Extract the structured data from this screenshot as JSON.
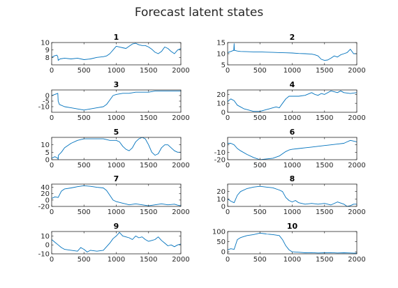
{
  "figure": {
    "title": "Forecast latent states"
  },
  "colors": {
    "line": "#0072bd",
    "axis": "#262626"
  },
  "chart_data": [
    {
      "type": "line",
      "title": "1",
      "xlim": [
        0,
        2000
      ],
      "ylim": [
        7,
        10
      ],
      "yticks": [
        8,
        9,
        10
      ],
      "xticks": [
        0,
        500,
        1000,
        1500,
        2000
      ],
      "x": [
        0,
        40,
        80,
        95,
        100,
        130,
        200,
        300,
        400,
        500,
        600,
        700,
        800,
        850,
        900,
        950,
        1000,
        1050,
        1100,
        1150,
        1200,
        1250,
        1300,
        1350,
        1400,
        1450,
        1500,
        1550,
        1600,
        1650,
        1700,
        1750,
        1800,
        1850,
        1900,
        1950,
        2000
      ],
      "y": [
        8.0,
        8.2,
        8.3,
        8.1,
        7.6,
        7.8,
        7.9,
        7.8,
        7.9,
        7.7,
        7.8,
        8.0,
        8.1,
        8.2,
        8.5,
        9.0,
        9.5,
        9.4,
        9.3,
        9.2,
        9.5,
        9.8,
        9.9,
        9.7,
        9.6,
        9.6,
        9.4,
        9.1,
        8.7,
        8.5,
        8.8,
        9.4,
        9.2,
        8.8,
        8.5,
        9.0,
        9.2
      ]
    },
    {
      "type": "line",
      "title": "2",
      "xlim": [
        0,
        2000
      ],
      "ylim": [
        5,
        15
      ],
      "yticks": [
        5,
        10,
        15
      ],
      "xticks": [
        0,
        500,
        1000,
        1500,
        2000
      ],
      "x": [
        0,
        50,
        95,
        100,
        105,
        150,
        200,
        300,
        400,
        500,
        600,
        700,
        800,
        900,
        1000,
        1100,
        1200,
        1300,
        1350,
        1400,
        1450,
        1500,
        1550,
        1600,
        1650,
        1700,
        1750,
        1800,
        1850,
        1900,
        1950,
        2000
      ],
      "y": [
        10.5,
        11.0,
        11.5,
        14.5,
        11.5,
        11.2,
        11.0,
        10.9,
        10.8,
        10.8,
        10.7,
        10.6,
        10.5,
        10.4,
        10.3,
        10.1,
        10.0,
        9.8,
        9.5,
        9.0,
        7.5,
        7.0,
        7.2,
        8.0,
        9.0,
        8.5,
        9.5,
        10.0,
        10.5,
        12.0,
        10.0,
        10.0
      ]
    },
    {
      "type": "line",
      "title": "3",
      "xlim": [
        0,
        2000
      ],
      "ylim": [
        -15,
        5
      ],
      "yticks": [
        -10,
        -5,
        0
      ],
      "xticks": [
        0,
        500,
        1000,
        1500,
        2000
      ],
      "x": [
        0,
        50,
        95,
        100,
        120,
        200,
        300,
        400,
        500,
        600,
        700,
        800,
        850,
        900,
        950,
        1000,
        1100,
        1200,
        1300,
        1400,
        1500,
        1600,
        1700,
        1800,
        1900,
        2000
      ],
      "y": [
        0,
        1,
        2,
        -5,
        -8,
        -10,
        -11,
        -12,
        -13,
        -12,
        -11,
        -10,
        -8,
        -4,
        0,
        1,
        2,
        2,
        3,
        3,
        3,
        4,
        4,
        4,
        4,
        4
      ]
    },
    {
      "type": "line",
      "title": "4",
      "xlim": [
        0,
        2000
      ],
      "ylim": [
        0,
        25
      ],
      "yticks": [
        0,
        10,
        20
      ],
      "xticks": [
        0,
        500,
        1000,
        1500,
        2000
      ],
      "x": [
        0,
        50,
        100,
        150,
        200,
        250,
        300,
        350,
        400,
        450,
        500,
        550,
        600,
        650,
        700,
        750,
        800,
        850,
        900,
        950,
        1000,
        1100,
        1200,
        1300,
        1350,
        1400,
        1450,
        1500,
        1600,
        1700,
        1750,
        1800,
        1900,
        2000
      ],
      "y": [
        12,
        15,
        13,
        8,
        6,
        4,
        3,
        2,
        1,
        1,
        1,
        2,
        3,
        4,
        5,
        6,
        5,
        10,
        15,
        18,
        18,
        18,
        19,
        22,
        20,
        19,
        21,
        20,
        24,
        22,
        24,
        22,
        21,
        22
      ]
    },
    {
      "type": "line",
      "title": "5",
      "xlim": [
        0,
        2000
      ],
      "ylim": [
        0,
        15
      ],
      "yticks": [
        0,
        5,
        10
      ],
      "xticks": [
        0,
        500,
        1000,
        1500,
        2000
      ],
      "x": [
        0,
        50,
        95,
        100,
        105,
        150,
        200,
        300,
        400,
        500,
        600,
        700,
        800,
        900,
        1000,
        1050,
        1100,
        1150,
        1200,
        1250,
        1300,
        1350,
        1400,
        1450,
        1500,
        1550,
        1600,
        1650,
        1700,
        1750,
        1800,
        1850,
        1900,
        1950,
        2000
      ],
      "y": [
        1,
        2,
        1,
        0,
        3,
        5,
        8,
        11,
        13,
        14,
        14,
        14,
        14,
        13,
        13,
        12,
        9,
        7,
        6,
        8,
        12,
        14,
        15,
        14,
        10,
        5,
        3,
        4,
        8,
        10,
        10,
        8,
        6,
        5,
        5
      ]
    },
    {
      "type": "line",
      "title": "6",
      "xlim": [
        0,
        2000
      ],
      "ylim": [
        -20,
        10
      ],
      "yticks": [
        -20,
        -10,
        0
      ],
      "xticks": [
        0,
        500,
        1000,
        1500,
        2000
      ],
      "x": [
        0,
        50,
        100,
        150,
        200,
        300,
        400,
        500,
        600,
        700,
        800,
        850,
        900,
        950,
        1000,
        1100,
        1200,
        1300,
        1400,
        1500,
        1600,
        1700,
        1800,
        1850,
        1900,
        1950,
        2000
      ],
      "y": [
        2,
        2,
        0,
        -5,
        -8,
        -13,
        -17,
        -20,
        -19,
        -18,
        -15,
        -12,
        -9,
        -7,
        -6,
        -5,
        -4,
        -3,
        -2,
        -1,
        0,
        1,
        2,
        4,
        6,
        5,
        4
      ]
    },
    {
      "type": "line",
      "title": "7",
      "xlim": [
        0,
        2000
      ],
      "ylim": [
        -20,
        50
      ],
      "yticks": [
        -20,
        0,
        20,
        40
      ],
      "xticks": [
        0,
        500,
        1000,
        1500,
        2000
      ],
      "x": [
        0,
        50,
        100,
        150,
        200,
        300,
        400,
        500,
        600,
        700,
        800,
        850,
        900,
        950,
        1000,
        1100,
        1200,
        1300,
        1400,
        1500,
        1600,
        1700,
        1800,
        1900,
        1950,
        2000
      ],
      "y": [
        5,
        10,
        8,
        28,
        35,
        38,
        42,
        45,
        43,
        40,
        38,
        30,
        15,
        0,
        -5,
        -10,
        -15,
        -12,
        -15,
        -18,
        -15,
        -12,
        -15,
        -13,
        -16,
        -18
      ]
    },
    {
      "type": "line",
      "title": "8",
      "xlim": [
        0,
        2000
      ],
      "ylim": [
        0,
        30
      ],
      "yticks": [
        0,
        10,
        20
      ],
      "xticks": [
        0,
        500,
        1000,
        1500,
        2000
      ],
      "x": [
        0,
        50,
        100,
        150,
        200,
        300,
        400,
        500,
        600,
        700,
        800,
        850,
        900,
        950,
        1000,
        1050,
        1100,
        1200,
        1300,
        1400,
        1500,
        1600,
        1700,
        1800,
        1850,
        1900,
        1950,
        2000
      ],
      "y": [
        10,
        7,
        5,
        15,
        20,
        24,
        26,
        27,
        26,
        25,
        22,
        20,
        12,
        8,
        6,
        8,
        5,
        3,
        4,
        3,
        4,
        2,
        6,
        3,
        0,
        1,
        3,
        3
      ]
    },
    {
      "type": "line",
      "title": "9",
      "xlim": [
        0,
        2000
      ],
      "ylim": [
        -10,
        15
      ],
      "yticks": [
        -10,
        0,
        10
      ],
      "xticks": [
        0,
        500,
        1000,
        1500,
        2000
      ],
      "x": [
        0,
        50,
        100,
        150,
        200,
        300,
        400,
        450,
        500,
        550,
        600,
        700,
        800,
        850,
        900,
        950,
        1000,
        1050,
        1100,
        1150,
        1200,
        1250,
        1300,
        1350,
        1400,
        1450,
        1500,
        1550,
        1600,
        1650,
        1700,
        1750,
        1800,
        1850,
        1900,
        1950,
        2000
      ],
      "y": [
        6,
        3,
        0,
        -3,
        -5,
        -6,
        -7,
        -3,
        -5,
        -8,
        -6,
        -7,
        -6,
        -2,
        2,
        7,
        10,
        14,
        10,
        9,
        8,
        6,
        10,
        8,
        9,
        6,
        4,
        5,
        6,
        9,
        5,
        2,
        -1,
        0,
        -2,
        0,
        1
      ]
    },
    {
      "type": "line",
      "title": "10",
      "xlim": [
        0,
        2000
      ],
      "ylim": [
        -10,
        100
      ],
      "yticks": [
        0,
        50,
        100
      ],
      "xticks": [
        0,
        500,
        1000,
        1500,
        2000
      ],
      "x": [
        0,
        50,
        100,
        150,
        200,
        300,
        400,
        500,
        600,
        700,
        800,
        850,
        900,
        950,
        1000,
        1100,
        1200,
        1300,
        1400,
        1500,
        1600,
        1700,
        1800,
        1900,
        2000
      ],
      "y": [
        10,
        15,
        12,
        60,
        70,
        80,
        85,
        92,
        88,
        85,
        80,
        60,
        30,
        10,
        0,
        -2,
        -5,
        -4,
        -6,
        -5,
        -4,
        -6,
        -5,
        -6,
        -7
      ]
    }
  ]
}
